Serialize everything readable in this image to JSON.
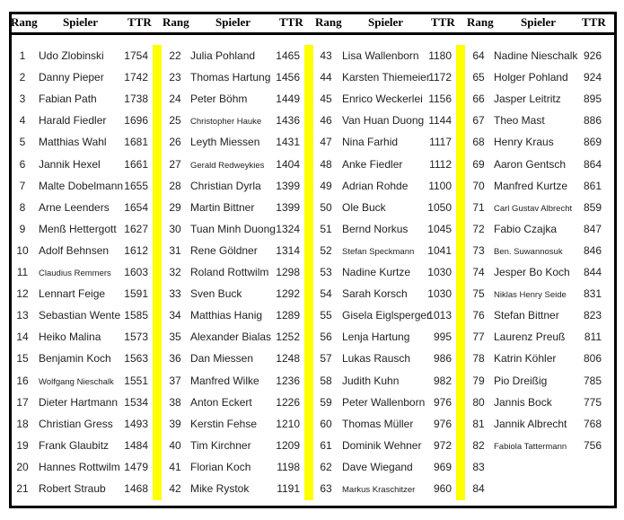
{
  "headers": {
    "rank": "Rang",
    "player": "Spieler",
    "ttr": "TTR"
  },
  "highlight_color": "#ffff00",
  "groups": [
    {
      "rows": [
        {
          "rank": "1",
          "name": "Udo Zlobinski",
          "ttr": "1754"
        },
        {
          "rank": "2",
          "name": "Danny Pieper",
          "ttr": "1742"
        },
        {
          "rank": "3",
          "name": "Fabian Path",
          "ttr": "1738"
        },
        {
          "rank": "4",
          "name": "Harald Fiedler",
          "ttr": "1696"
        },
        {
          "rank": "5",
          "name": "Matthias Wahl",
          "ttr": "1681"
        },
        {
          "rank": "6",
          "name": "Jannik Hexel",
          "ttr": "1661"
        },
        {
          "rank": "7",
          "name": "Malte Dobelmann",
          "ttr": "1655"
        },
        {
          "rank": "8",
          "name": "Arne Leenders",
          "ttr": "1654"
        },
        {
          "rank": "9",
          "name": "Menß Hettergott",
          "ttr": "1627"
        },
        {
          "rank": "10",
          "name": "Adolf Behnsen",
          "ttr": "1612"
        },
        {
          "rank": "11",
          "name": "Claudius Remmers",
          "ttr": "1603",
          "small": true
        },
        {
          "rank": "12",
          "name": "Lennart Feige",
          "ttr": "1591"
        },
        {
          "rank": "13",
          "name": "Sebastian Wente",
          "ttr": "1585"
        },
        {
          "rank": "14",
          "name": "Heiko Malina",
          "ttr": "1573"
        },
        {
          "rank": "15",
          "name": "Benjamin Koch",
          "ttr": "1563"
        },
        {
          "rank": "16",
          "name": "Wolfgang Nieschalk",
          "ttr": "1551",
          "small": true
        },
        {
          "rank": "17",
          "name": "Dieter Hartmann",
          "ttr": "1534"
        },
        {
          "rank": "18",
          "name": "Christian Gress",
          "ttr": "1493"
        },
        {
          "rank": "19",
          "name": "Frank Glaubitz",
          "ttr": "1484"
        },
        {
          "rank": "20",
          "name": "Hannes Rottwilm",
          "ttr": "1479"
        },
        {
          "rank": "21",
          "name": "Robert Straub",
          "ttr": "1468"
        }
      ]
    },
    {
      "rows": [
        {
          "rank": "22",
          "name": "Julia Pohland",
          "ttr": "1465"
        },
        {
          "rank": "23",
          "name": "Thomas Hartung",
          "ttr": "1456"
        },
        {
          "rank": "24",
          "name": "Peter Böhm",
          "ttr": "1449"
        },
        {
          "rank": "25",
          "name": "Christopher Hauke",
          "ttr": "1436",
          "small": true
        },
        {
          "rank": "26",
          "name": "Leyth Miessen",
          "ttr": "1431"
        },
        {
          "rank": "27",
          "name": "Gerald Redweykies",
          "ttr": "1404",
          "small": true
        },
        {
          "rank": "28",
          "name": "Christian Dyrla",
          "ttr": "1399"
        },
        {
          "rank": "29",
          "name": "Martin Bittner",
          "ttr": "1399"
        },
        {
          "rank": "30",
          "name": "Tuan Minh Duong",
          "ttr": "1324"
        },
        {
          "rank": "31",
          "name": "Rene Göldner",
          "ttr": "1314"
        },
        {
          "rank": "32",
          "name": "Roland Rottwilm",
          "ttr": "1298"
        },
        {
          "rank": "33",
          "name": "Sven Buck",
          "ttr": "1292"
        },
        {
          "rank": "34",
          "name": "Matthias Hanig",
          "ttr": "1289"
        },
        {
          "rank": "35",
          "name": "Alexander Bialas",
          "ttr": "1252"
        },
        {
          "rank": "36",
          "name": "Dan Miessen",
          "ttr": "1248"
        },
        {
          "rank": "37",
          "name": "Manfred Wilke",
          "ttr": "1236"
        },
        {
          "rank": "38",
          "name": "Anton Eckert",
          "ttr": "1226"
        },
        {
          "rank": "39",
          "name": "Kerstin Fehse",
          "ttr": "1210"
        },
        {
          "rank": "40",
          "name": "Tim Kirchner",
          "ttr": "1209"
        },
        {
          "rank": "41",
          "name": "Florian Koch",
          "ttr": "1198"
        },
        {
          "rank": "42",
          "name": "Mike Rystok",
          "ttr": "1191"
        }
      ]
    },
    {
      "rows": [
        {
          "rank": "43",
          "name": "Lisa Wallenborn",
          "ttr": "1180"
        },
        {
          "rank": "44",
          "name": "Karsten Thiemeier",
          "ttr": "1172"
        },
        {
          "rank": "45",
          "name": "Enrico Weckerlei",
          "ttr": "1156"
        },
        {
          "rank": "46",
          "name": "Van Huan Duong",
          "ttr": "1144"
        },
        {
          "rank": "47",
          "name": "Nina Farhid",
          "ttr": "1117"
        },
        {
          "rank": "48",
          "name": "Anke Fiedler",
          "ttr": "1112"
        },
        {
          "rank": "49",
          "name": "Adrian Rohde",
          "ttr": "1100"
        },
        {
          "rank": "50",
          "name": "Ole Buck",
          "ttr": "1050"
        },
        {
          "rank": "51",
          "name": "Bernd Norkus",
          "ttr": "1045"
        },
        {
          "rank": "52",
          "name": "Stefan Speckmann",
          "ttr": "1041",
          "small": true
        },
        {
          "rank": "53",
          "name": "Nadine Kurtze",
          "ttr": "1030"
        },
        {
          "rank": "54",
          "name": "Sarah Korsch",
          "ttr": "1030"
        },
        {
          "rank": "55",
          "name": "Gisela Eiglsperger",
          "ttr": "1013"
        },
        {
          "rank": "56",
          "name": "Lenja Hartung",
          "ttr": "995"
        },
        {
          "rank": "57",
          "name": "Lukas Rausch",
          "ttr": "986"
        },
        {
          "rank": "58",
          "name": "Judith Kuhn",
          "ttr": "982"
        },
        {
          "rank": "59",
          "name": "Peter Wallenborn",
          "ttr": "976"
        },
        {
          "rank": "60",
          "name": "Thomas Müller",
          "ttr": "976"
        },
        {
          "rank": "61",
          "name": "Dominik Wehner",
          "ttr": "972"
        },
        {
          "rank": "62",
          "name": "Dave Wiegand",
          "ttr": "969"
        },
        {
          "rank": "63",
          "name": "Markus Kraschitzer",
          "ttr": "960",
          "small": true
        }
      ]
    },
    {
      "rows": [
        {
          "rank": "64",
          "name": "Nadine Nieschalk",
          "ttr": "926"
        },
        {
          "rank": "65",
          "name": "Holger Pohland",
          "ttr": "924"
        },
        {
          "rank": "66",
          "name": "Jasper Leitritz",
          "ttr": "895"
        },
        {
          "rank": "67",
          "name": "Theo Mast",
          "ttr": "886"
        },
        {
          "rank": "68",
          "name": "Henry Kraus",
          "ttr": "869"
        },
        {
          "rank": "69",
          "name": "Aaron Gentsch",
          "ttr": "864"
        },
        {
          "rank": "70",
          "name": "Manfred Kurtze",
          "ttr": "861"
        },
        {
          "rank": "71",
          "name": "Carl Gustav Albrecht",
          "ttr": "859",
          "small": true
        },
        {
          "rank": "72",
          "name": "Fabio Czajka",
          "ttr": "847"
        },
        {
          "rank": "73",
          "name": "Ben. Suwannosuk",
          "ttr": "846",
          "small": true
        },
        {
          "rank": "74",
          "name": "Jesper Bo Koch",
          "ttr": "844"
        },
        {
          "rank": "75",
          "name": "Niklas Henry Seide",
          "ttr": "831",
          "small": true
        },
        {
          "rank": "76",
          "name": "Stefan Bittner",
          "ttr": "823"
        },
        {
          "rank": "77",
          "name": "Laurenz Preuß",
          "ttr": "811"
        },
        {
          "rank": "78",
          "name": "Katrin Köhler",
          "ttr": "806"
        },
        {
          "rank": "79",
          "name": "Pio Dreißig",
          "ttr": "785"
        },
        {
          "rank": "80",
          "name": "Jannis Bock",
          "ttr": "775"
        },
        {
          "rank": "81",
          "name": "Jannik Albrecht",
          "ttr": "768"
        },
        {
          "rank": "82",
          "name": "Fabiola Tattermann",
          "ttr": "756",
          "small": true
        },
        {
          "rank": "83",
          "name": "",
          "ttr": ""
        },
        {
          "rank": "84",
          "name": "",
          "ttr": ""
        }
      ]
    }
  ]
}
